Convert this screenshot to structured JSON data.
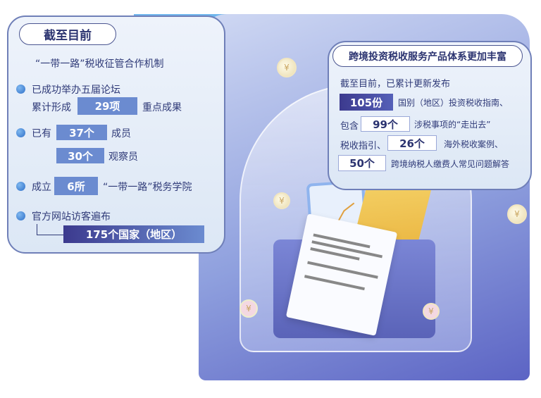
{
  "left_panel": {
    "title": "截至目前",
    "subtitle": "“一带一路”税收征管合作机制",
    "item1_line1": "已成功举办五届论坛",
    "item1_prefix": "累计形成",
    "item1_value": "29项",
    "item1_suffix": "重点成果",
    "item2_prefix": "已有",
    "item2_value_a": "37个",
    "item2_suffix_a": "成员",
    "item2_value_b": "30个",
    "item2_suffix_b": "观察员",
    "item3_prefix": "成立",
    "item3_value": "6所",
    "item3_suffix": "“一带一路”税务学院",
    "item4_line1": "官方网站访客遍布",
    "item4_value": "175个国家（地区）"
  },
  "right_panel": {
    "title": "跨境投资税收服务产品体系更加丰富",
    "intro": "截至目前，已累计更新发布",
    "v1": "105份",
    "t1": "国别（地区）投资税收指南、",
    "p2": "包含",
    "v2": "99个",
    "t2": "涉税事项的“走出去”",
    "p3": "税收指引、",
    "v3": "26个",
    "t3": "海外税收案例、",
    "v4": "50个",
    "t4": "跨境纳税人缴费人常见问题解答"
  },
  "coin_symbol": "¥",
  "colors": {
    "accent_blue": "#6b8bd0",
    "dark_purple": "#3c3a8e",
    "panel_border": "#6f7fb8"
  }
}
